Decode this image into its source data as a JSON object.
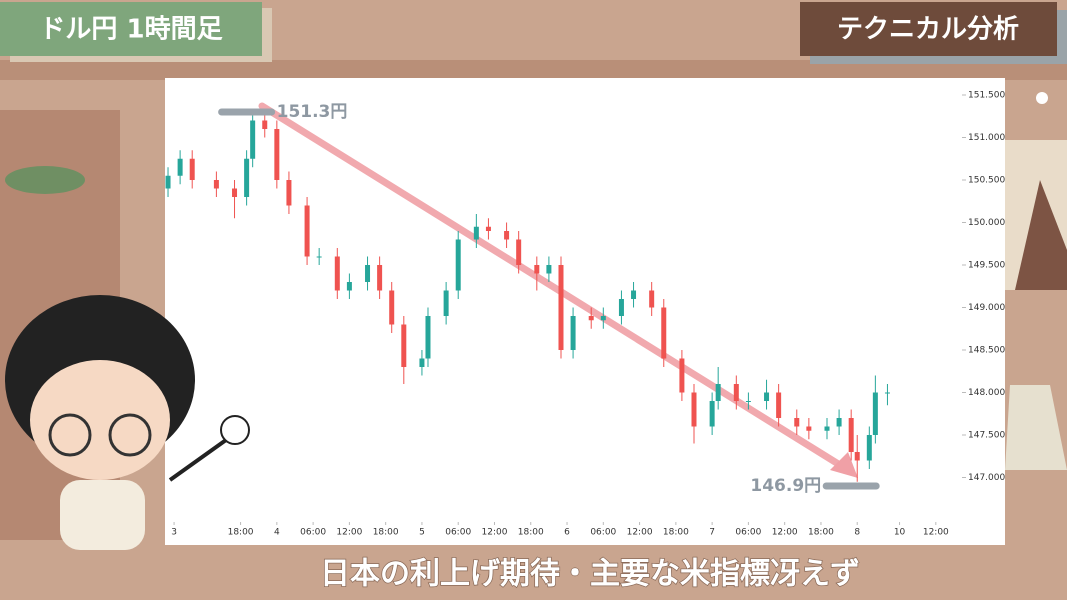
{
  "chart_data": {
    "type": "candlestick",
    "title": "ドル円 1時間足",
    "subtitle": "テクニカル分析",
    "caption": "日本の利上げ期待・主要な米指標冴えず",
    "x": [
      6,
      8,
      10,
      14,
      17,
      19,
      20,
      22,
      24,
      26,
      29,
      31,
      34,
      36,
      39,
      41,
      43,
      45,
      48,
      49,
      52,
      54,
      57,
      59,
      62,
      64,
      67,
      69,
      71,
      73,
      76,
      78,
      81,
      83,
      86,
      88,
      91,
      93,
      96,
      97,
      100,
      102,
      105,
      107,
      110,
      112,
      115,
      117,
      119,
      120,
      122,
      123,
      125
    ],
    "open": [
      150.4,
      150.55,
      150.75,
      150.5,
      150.4,
      150.3,
      150.75,
      151.2,
      151.1,
      150.5,
      150.2,
      149.6,
      149.6,
      149.2,
      149.3,
      149.5,
      149.2,
      148.8,
      148.3,
      148.4,
      148.9,
      149.2,
      149.8,
      149.95,
      149.9,
      149.8,
      149.5,
      149.4,
      149.5,
      148.5,
      148.9,
      148.85,
      148.9,
      149.1,
      149.2,
      149.0,
      148.4,
      148.0,
      147.6,
      147.9,
      148.1,
      147.9,
      147.9,
      148.0,
      147.7,
      147.6,
      147.55,
      147.6,
      147.7,
      147.3,
      147.2,
      147.5,
      148.0
    ],
    "high": [
      150.65,
      150.85,
      150.85,
      150.6,
      150.5,
      150.85,
      151.3,
      151.3,
      151.2,
      150.6,
      150.3,
      149.7,
      149.7,
      149.4,
      149.6,
      149.6,
      149.3,
      148.9,
      148.5,
      149.0,
      149.3,
      149.9,
      150.1,
      150.05,
      150.0,
      149.9,
      149.6,
      149.6,
      149.6,
      149.0,
      149.0,
      149.0,
      149.2,
      149.3,
      149.3,
      149.1,
      148.5,
      148.1,
      148.0,
      148.3,
      148.2,
      148.0,
      148.15,
      148.1,
      147.8,
      147.7,
      147.7,
      147.8,
      147.8,
      147.5,
      147.6,
      148.2,
      148.1
    ],
    "low": [
      150.3,
      150.45,
      150.4,
      150.3,
      150.05,
      150.2,
      150.65,
      151.0,
      150.4,
      150.1,
      149.5,
      149.5,
      149.1,
      149.1,
      149.2,
      149.1,
      148.7,
      148.1,
      148.2,
      148.3,
      148.8,
      149.1,
      149.7,
      149.8,
      149.7,
      149.4,
      149.2,
      149.3,
      148.4,
      148.4,
      148.75,
      148.75,
      148.8,
      149.0,
      148.9,
      148.3,
      147.9,
      147.4,
      147.5,
      147.8,
      147.8,
      147.8,
      147.8,
      147.6,
      147.5,
      147.45,
      147.45,
      147.5,
      147.2,
      146.95,
      147.1,
      147.4,
      147.85
    ],
    "close": [
      150.55,
      150.75,
      150.5,
      150.4,
      150.3,
      150.75,
      151.2,
      151.1,
      150.5,
      150.2,
      149.6,
      149.6,
      149.2,
      149.3,
      149.5,
      149.2,
      148.8,
      148.3,
      148.4,
      148.9,
      149.2,
      149.8,
      149.95,
      149.9,
      149.8,
      149.5,
      149.4,
      149.5,
      148.5,
      148.9,
      148.85,
      148.9,
      149.1,
      149.2,
      149.0,
      148.4,
      148.0,
      147.6,
      147.9,
      148.1,
      147.9,
      147.9,
      148.0,
      147.7,
      147.6,
      147.55,
      147.6,
      147.7,
      147.3,
      147.2,
      147.5,
      148.0,
      148.0
    ],
    "up_color": "#26a69a",
    "down_color": "#ef5350",
    "xlim": [
      5.5,
      137
    ],
    "ylim": [
      146.5,
      151.7
    ],
    "xticks": [
      {
        "value": 7,
        "label": "3"
      },
      {
        "value": 18,
        "label": "18:00"
      },
      {
        "value": 24,
        "label": "4"
      },
      {
        "value": 30,
        "label": "06:00"
      },
      {
        "value": 36,
        "label": "12:00"
      },
      {
        "value": 42,
        "label": "18:00"
      },
      {
        "value": 48,
        "label": "5"
      },
      {
        "value": 54,
        "label": "06:00"
      },
      {
        "value": 60,
        "label": "12:00"
      },
      {
        "value": 66,
        "label": "18:00"
      },
      {
        "value": 72,
        "label": "6"
      },
      {
        "value": 78,
        "label": "06:00"
      },
      {
        "value": 84,
        "label": "12:00"
      },
      {
        "value": 90,
        "label": "18:00"
      },
      {
        "value": 96,
        "label": "7"
      },
      {
        "value": 102,
        "label": "06:00"
      },
      {
        "value": 108,
        "label": "12:00"
      },
      {
        "value": 114,
        "label": "18:00"
      },
      {
        "value": 120,
        "label": "8"
      },
      {
        "value": 127,
        "label": "10"
      },
      {
        "value": 133,
        "label": "12:00"
      }
    ],
    "yticks": [
      {
        "value": 147,
        "label": "147.000"
      },
      {
        "value": 147.5,
        "label": "147.500"
      },
      {
        "value": 148,
        "label": "148.000"
      },
      {
        "value": 148.5,
        "label": "148.500"
      },
      {
        "value": 149,
        "label": "149.000"
      },
      {
        "value": 149.5,
        "label": "149.500"
      },
      {
        "value": 150,
        "label": "150.000"
      },
      {
        "value": 150.5,
        "label": "150.500"
      },
      {
        "value": 151,
        "label": "151.000"
      },
      {
        "value": 151.5,
        "label": "151.500"
      }
    ],
    "annotations": [
      {
        "x": 19,
        "value": 151.3,
        "label": "151.3円"
      },
      {
        "x": 119,
        "value": 146.9,
        "label": "146.9円"
      }
    ]
  }
}
